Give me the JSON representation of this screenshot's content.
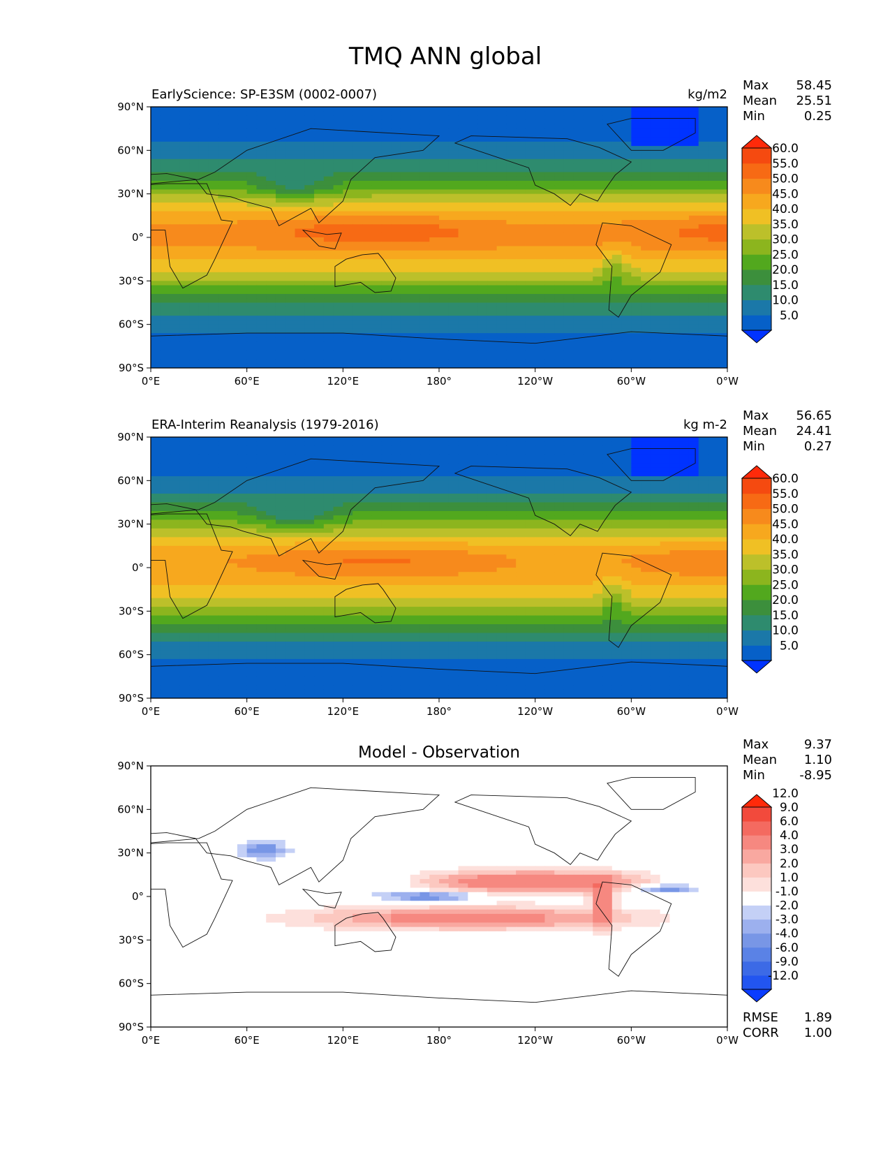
{
  "figure_title": "TMQ ANN global",
  "chart_data": [
    {
      "type": "heatmap",
      "id": "test",
      "title_left": "EarlyScience: SP-E3SM (0002-0007)",
      "title_center": "",
      "units": "kg/m2",
      "stats": [
        {
          "label": "Max",
          "value": "58.45"
        },
        {
          "label": "Mean",
          "value": "25.51"
        },
        {
          "label": "Min",
          "value": "0.25"
        }
      ],
      "colorbar": {
        "levels": [
          "5.0",
          "10.0",
          "15.0",
          "20.0",
          "25.0",
          "30.0",
          "35.0",
          "40.0",
          "45.0",
          "50.0",
          "55.0",
          "60.0"
        ],
        "colors": [
          "#0033ff",
          "#0660c8",
          "#1b78a8",
          "#2e8b6e",
          "#3c8f3c",
          "#52a81e",
          "#8cb51e",
          "#bcc02a",
          "#f0c024",
          "#f7a81e",
          "#f78a1c",
          "#f76a14",
          "#f54a10",
          "#ff2a0a"
        ],
        "extend": "both"
      },
      "xticks": [
        "0°E",
        "60°E",
        "120°E",
        "180°",
        "120°W",
        "60°W",
        "0°W"
      ],
      "yticks": [
        "90°N",
        "60°N",
        "30°N",
        "0°",
        "30°S",
        "60°S",
        "90°S"
      ],
      "x_range": [
        0,
        360
      ],
      "y_range": [
        -90,
        90
      ]
    },
    {
      "type": "heatmap",
      "id": "ref",
      "title_left": "ERA-Interim Reanalysis (1979-2016)",
      "title_center": "",
      "units": "kg m-2",
      "stats": [
        {
          "label": "Max",
          "value": "56.65"
        },
        {
          "label": "Mean",
          "value": "24.41"
        },
        {
          "label": "Min",
          "value": "0.27"
        }
      ],
      "colorbar": {
        "levels": [
          "5.0",
          "10.0",
          "15.0",
          "20.0",
          "25.0",
          "30.0",
          "35.0",
          "40.0",
          "45.0",
          "50.0",
          "55.0",
          "60.0"
        ],
        "colors": [
          "#0033ff",
          "#0660c8",
          "#1b78a8",
          "#2e8b6e",
          "#3c8f3c",
          "#52a81e",
          "#8cb51e",
          "#bcc02a",
          "#f0c024",
          "#f7a81e",
          "#f78a1c",
          "#f76a14",
          "#f54a10",
          "#ff2a0a"
        ],
        "extend": "both"
      },
      "xticks": [
        "0°E",
        "60°E",
        "120°E",
        "180°",
        "120°W",
        "60°W",
        "0°W"
      ],
      "yticks": [
        "90°N",
        "60°N",
        "30°N",
        "0°",
        "30°S",
        "60°S",
        "90°S"
      ],
      "x_range": [
        0,
        360
      ],
      "y_range": [
        -90,
        90
      ]
    },
    {
      "type": "heatmap",
      "id": "diff",
      "title_left": "",
      "title_center": "Model - Observation",
      "units": "",
      "stats": [
        {
          "label": "Max",
          "value": "9.37"
        },
        {
          "label": "Mean",
          "value": "1.10"
        },
        {
          "label": "Min",
          "value": "-8.95"
        }
      ],
      "colorbar": {
        "levels": [
          "-12.0",
          "-9.0",
          "-6.0",
          "-4.0",
          "-3.0",
          "-2.0",
          "-1.0",
          "1.0",
          "2.0",
          "3.0",
          "4.0",
          "6.0",
          "9.0",
          "12.0"
        ],
        "colors": [
          "#0a3cff",
          "#2255f0",
          "#3c6ae6",
          "#5a82e6",
          "#7896e6",
          "#9cb0ee",
          "#c4d0f6",
          "#ffffff",
          "#fde0dc",
          "#fcc8c0",
          "#f9a8a0",
          "#f68880",
          "#f46a60",
          "#f24a3c",
          "#ff2a0a"
        ],
        "extend": "both"
      },
      "xticks": [
        "0°E",
        "60°E",
        "120°E",
        "180°",
        "120°W",
        "60°W",
        "0°W"
      ],
      "yticks": [
        "90°N",
        "60°N",
        "30°N",
        "0°",
        "30°S",
        "60°S",
        "90°S"
      ],
      "x_range": [
        0,
        360
      ],
      "y_range": [
        -90,
        90
      ],
      "extra_stats": [
        {
          "label": "RMSE",
          "value": "1.89"
        },
        {
          "label": "CORR",
          "value": "1.00"
        }
      ]
    }
  ]
}
